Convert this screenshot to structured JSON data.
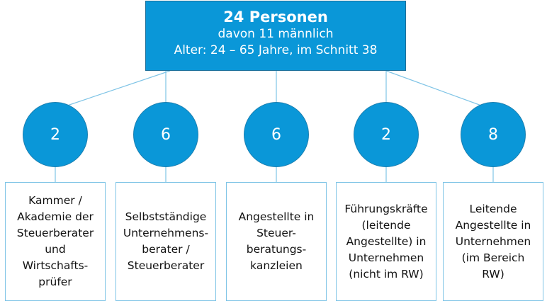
{
  "header": {
    "title": "24 Personen",
    "line1": "davon 11 männlich",
    "line2": "Alter: 24 – 65 Jahre, im Schnitt 38"
  },
  "groups": [
    {
      "count": "2",
      "label": "Kammer /\nAkademie der\nSteuerberater\nund\nWirtschafts-\nprüfer"
    },
    {
      "count": "6",
      "label": "Selbstständige\nUnternehmens-\nberater /\nSteuerberater"
    },
    {
      "count": "6",
      "label": "Angestellte in\nSteuer-\nberatungs-\nkanzleien"
    },
    {
      "count": "2",
      "label": "Führungskräfte\n(leitende\nAngestellte) in\nUnternehmen\n(nicht im RW)"
    },
    {
      "count": "8",
      "label": "Leitende\nAngestellte in\nUnternehmen\n(im Bereich\nRW)"
    }
  ],
  "colors": {
    "accent": "#0a97d8",
    "connector": "#7fc4e6",
    "card_border": "#7fc4e6"
  }
}
